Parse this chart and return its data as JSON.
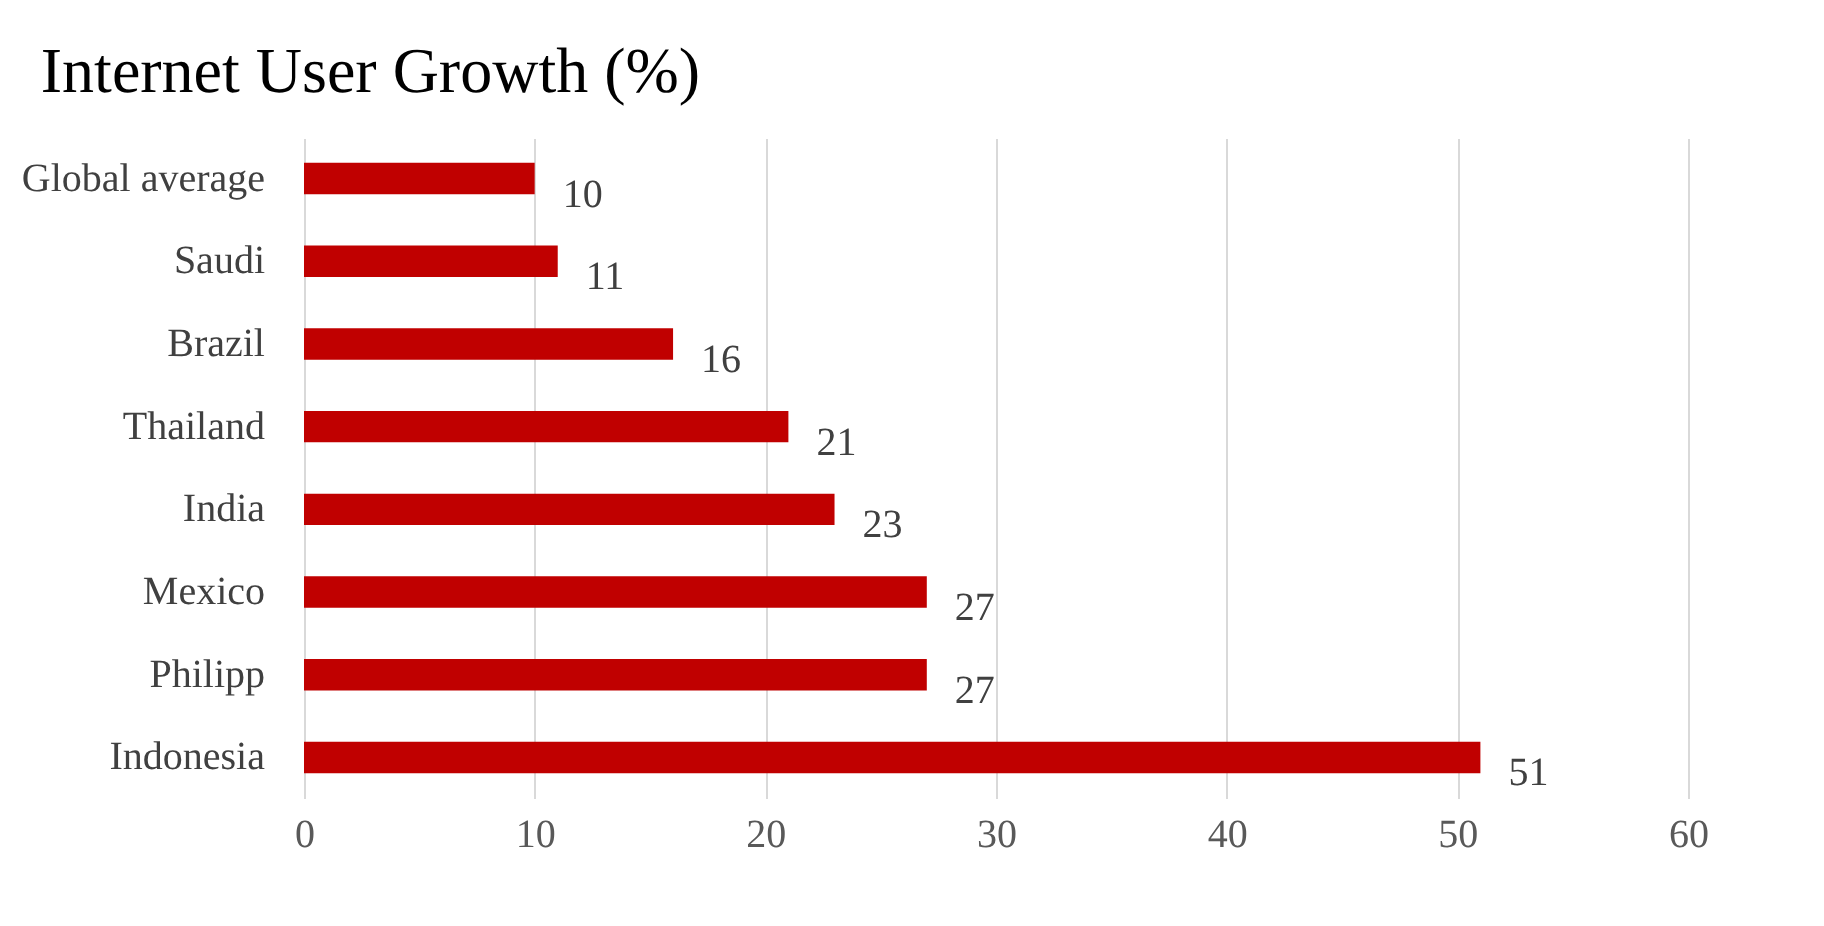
{
  "chart_data": {
    "type": "bar",
    "orientation": "horizontal",
    "title": "Internet User Growth (%)",
    "categories": [
      "Global average",
      "Saudi",
      "Brazil",
      "Thailand",
      "India",
      "Mexico",
      "Philipp",
      "Indonesia"
    ],
    "values": [
      10,
      11,
      16,
      21,
      23,
      27,
      27,
      51
    ],
    "color": "#c00000",
    "xlim": [
      0,
      60
    ],
    "xticks": [
      0,
      10,
      20,
      30,
      40,
      50,
      60
    ],
    "grid": "x",
    "data_labels": true
  }
}
